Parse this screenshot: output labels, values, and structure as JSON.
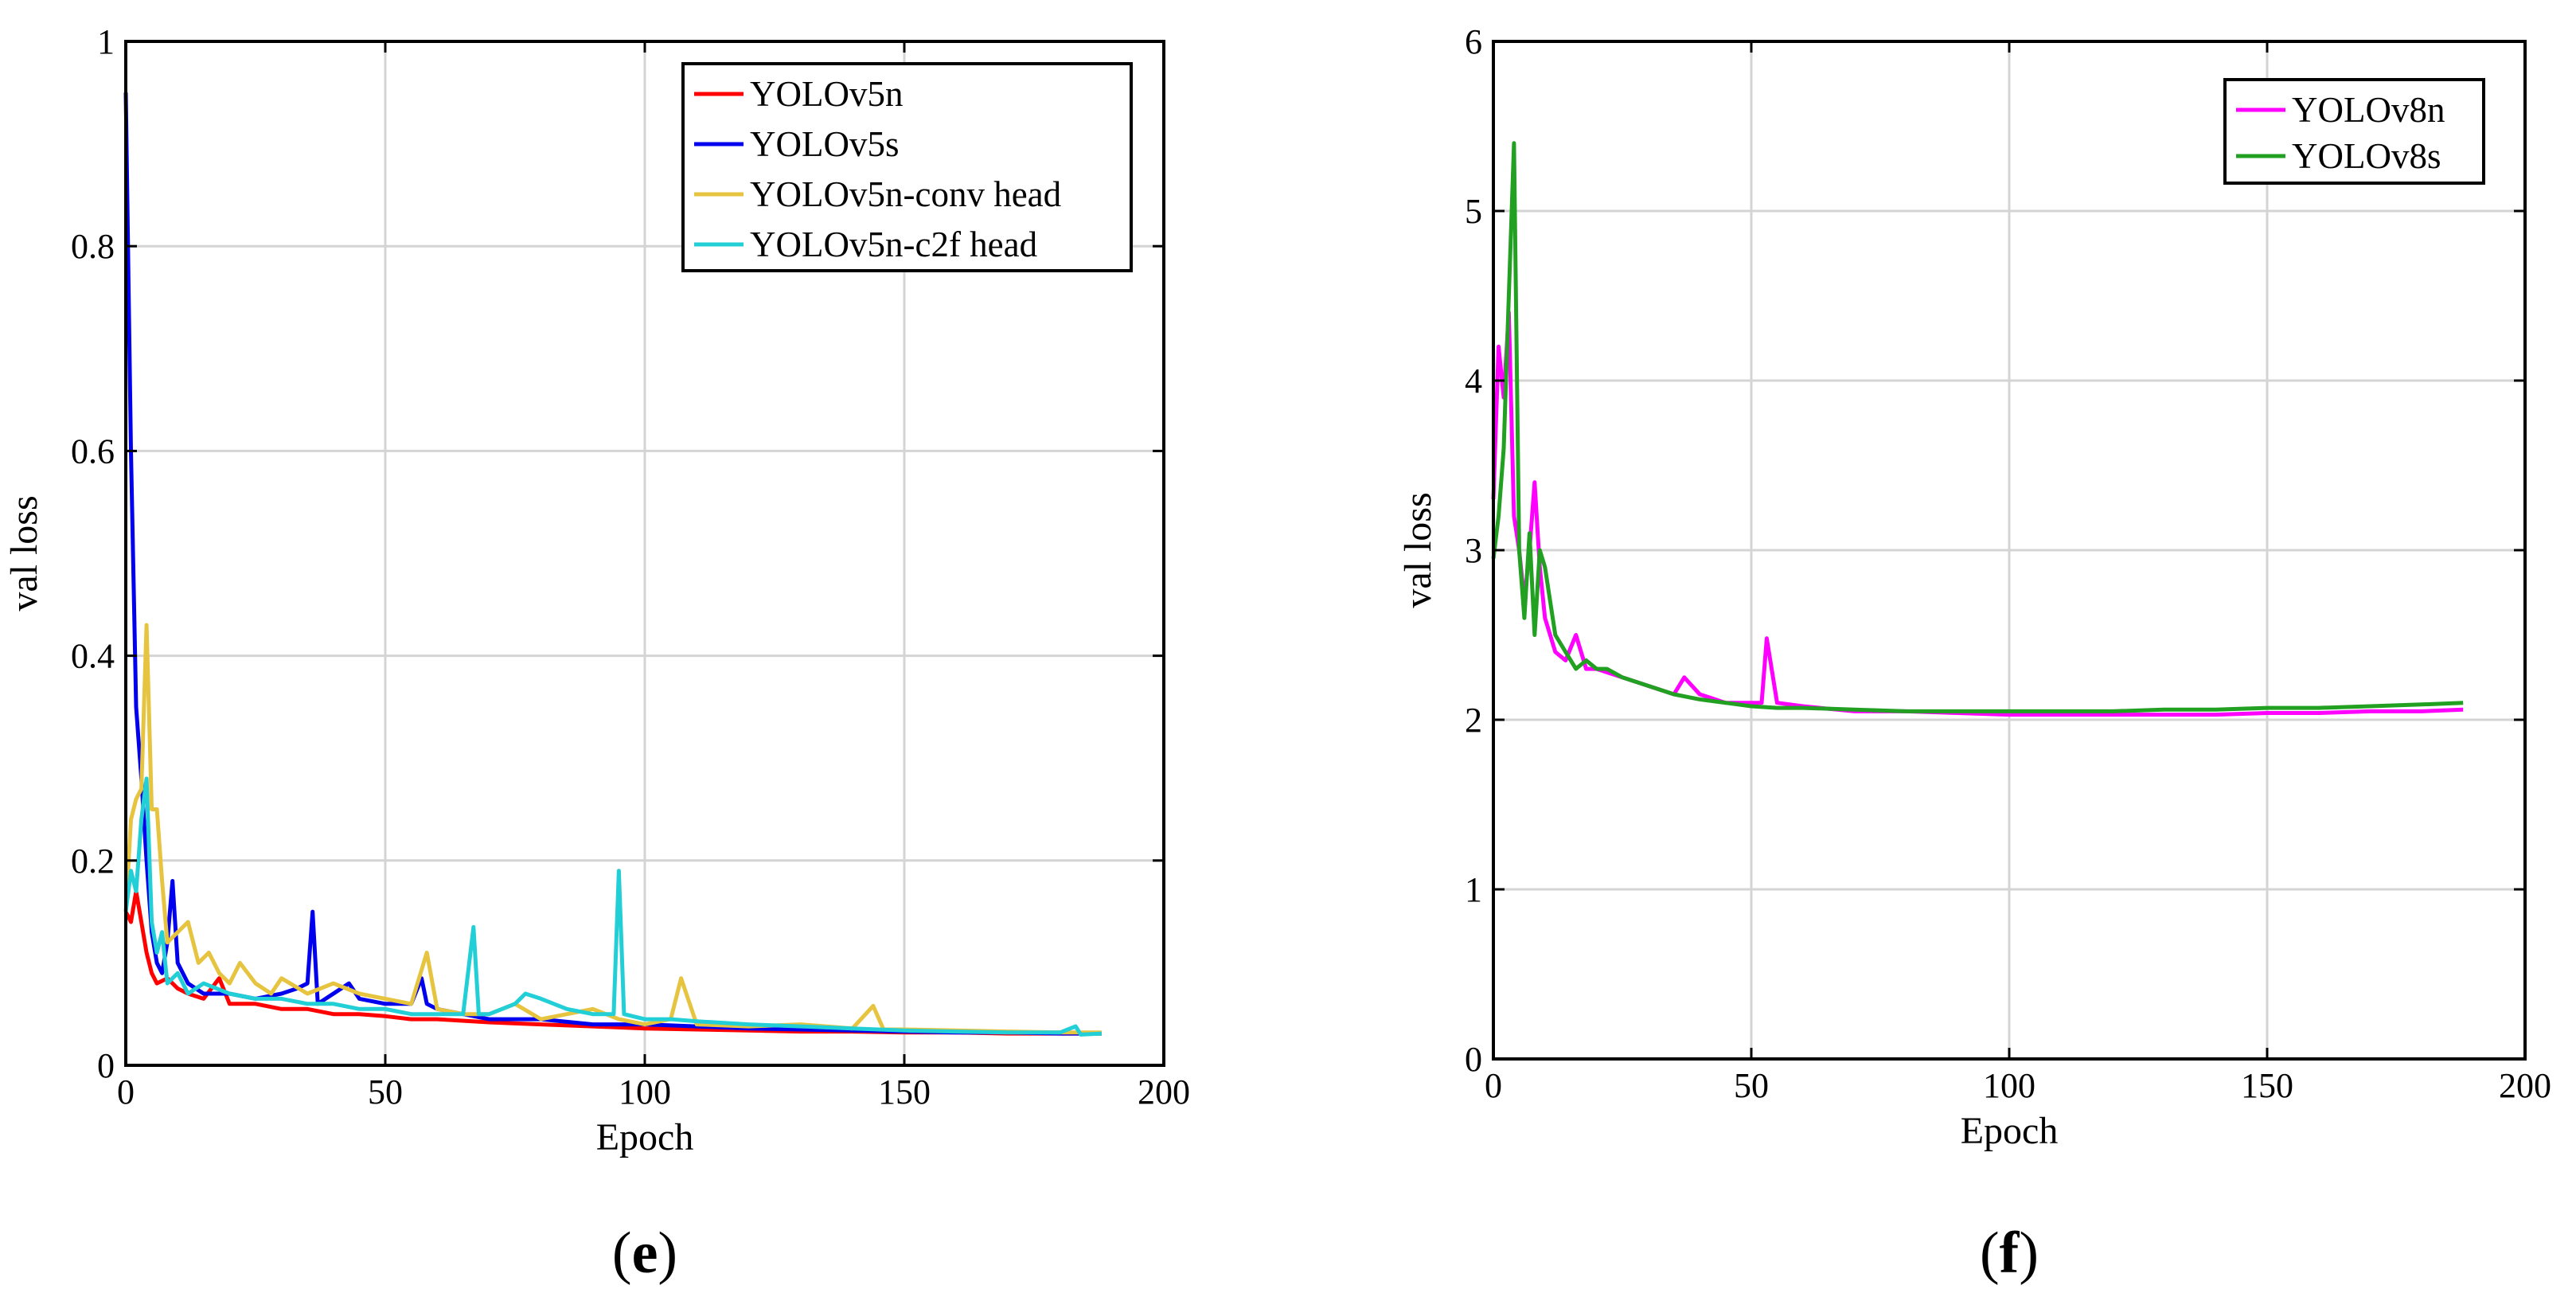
{
  "chart_data": [
    {
      "type": "line",
      "panel_label": "e",
      "xlabel": "Epoch",
      "ylabel": "val loss",
      "xlim": [
        0,
        200
      ],
      "ylim": [
        0,
        1
      ],
      "xticks": [
        0,
        50,
        100,
        150,
        200
      ],
      "yticks": [
        0,
        0.2,
        0.4,
        0.6,
        0.8,
        1
      ],
      "xtick_labels": [
        "0",
        "50",
        "100",
        "150",
        "200"
      ],
      "ytick_labels": [
        "0",
        "0.2",
        "0.4",
        "0.6",
        "0.8",
        "1"
      ],
      "grid": true,
      "legend_position": "top-right",
      "series": [
        {
          "name": "YOLOv5n",
          "color": "#ff0000",
          "x": [
            0,
            1,
            2,
            3,
            4,
            5,
            6,
            8,
            10,
            12,
            15,
            18,
            20,
            25,
            30,
            35,
            40,
            45,
            50,
            55,
            60,
            70,
            80,
            90,
            100,
            110,
            120,
            130,
            140,
            150,
            160,
            170,
            180,
            188
          ],
          "y": [
            0.15,
            0.14,
            0.17,
            0.14,
            0.11,
            0.09,
            0.08,
            0.085,
            0.075,
            0.07,
            0.065,
            0.085,
            0.06,
            0.06,
            0.055,
            0.055,
            0.05,
            0.05,
            0.048,
            0.045,
            0.045,
            0.042,
            0.04,
            0.038,
            0.036,
            0.035,
            0.034,
            0.033,
            0.033,
            0.032,
            0.032,
            0.031,
            0.031,
            0.031
          ]
        },
        {
          "name": "YOLOv5s",
          "color": "#0000ee",
          "x": [
            0,
            1,
            2,
            3,
            4,
            5,
            6,
            7,
            8,
            9,
            10,
            12,
            15,
            20,
            25,
            30,
            33,
            35,
            36,
            37,
            40,
            43,
            45,
            50,
            55,
            57,
            58,
            60,
            65,
            70,
            80,
            90,
            100,
            110,
            120,
            130,
            140,
            150,
            160,
            170,
            180,
            188
          ],
          "y": [
            0.95,
            0.6,
            0.35,
            0.28,
            0.2,
            0.13,
            0.1,
            0.09,
            0.12,
            0.18,
            0.1,
            0.08,
            0.07,
            0.07,
            0.065,
            0.07,
            0.075,
            0.08,
            0.15,
            0.06,
            0.07,
            0.08,
            0.065,
            0.06,
            0.06,
            0.085,
            0.06,
            0.055,
            0.05,
            0.045,
            0.045,
            0.04,
            0.04,
            0.038,
            0.036,
            0.035,
            0.034,
            0.033,
            0.032,
            0.032,
            0.031,
            0.031
          ]
        },
        {
          "name": "YOLOv5n-conv head",
          "color": "#e6c440",
          "x": [
            0,
            1,
            2,
            3,
            4,
            5,
            6,
            7,
            8,
            10,
            12,
            14,
            16,
            18,
            20,
            22,
            25,
            28,
            30,
            35,
            40,
            45,
            50,
            55,
            58,
            60,
            65,
            70,
            75,
            80,
            85,
            90,
            95,
            100,
            105,
            107,
            110,
            120,
            130,
            140,
            144,
            146,
            150,
            160,
            170,
            180,
            188
          ],
          "y": [
            0.15,
            0.24,
            0.26,
            0.27,
            0.43,
            0.25,
            0.25,
            0.18,
            0.12,
            0.13,
            0.14,
            0.1,
            0.11,
            0.09,
            0.08,
            0.1,
            0.08,
            0.07,
            0.085,
            0.07,
            0.08,
            0.07,
            0.065,
            0.06,
            0.11,
            0.055,
            0.05,
            0.05,
            0.06,
            0.045,
            0.05,
            0.055,
            0.045,
            0.04,
            0.045,
            0.085,
            0.04,
            0.038,
            0.04,
            0.036,
            0.058,
            0.035,
            0.035,
            0.034,
            0.033,
            0.032,
            0.032
          ]
        },
        {
          "name": "YOLOv5n-c2f head",
          "color": "#22cfd6",
          "x": [
            0,
            1,
            2,
            3,
            4,
            5,
            6,
            7,
            8,
            10,
            12,
            15,
            20,
            25,
            30,
            35,
            40,
            45,
            50,
            55,
            60,
            65,
            67,
            68,
            70,
            75,
            77,
            80,
            85,
            90,
            94,
            95,
            96,
            100,
            105,
            110,
            120,
            130,
            140,
            150,
            160,
            170,
            180,
            183,
            184,
            188
          ],
          "y": [
            0.15,
            0.19,
            0.17,
            0.24,
            0.28,
            0.14,
            0.11,
            0.13,
            0.08,
            0.09,
            0.07,
            0.08,
            0.07,
            0.065,
            0.065,
            0.06,
            0.06,
            0.055,
            0.055,
            0.05,
            0.05,
            0.05,
            0.135,
            0.05,
            0.05,
            0.06,
            0.07,
            0.065,
            0.055,
            0.05,
            0.05,
            0.19,
            0.05,
            0.045,
            0.045,
            0.043,
            0.04,
            0.038,
            0.036,
            0.034,
            0.033,
            0.032,
            0.032,
            0.038,
            0.03,
            0.031
          ]
        }
      ]
    },
    {
      "type": "line",
      "panel_label": "f",
      "xlabel": "Epoch",
      "ylabel": "val loss",
      "xlim": [
        0,
        200
      ],
      "ylim": [
        0,
        6
      ],
      "xticks": [
        0,
        50,
        100,
        150,
        200
      ],
      "yticks": [
        0,
        1,
        2,
        3,
        4,
        5,
        6
      ],
      "xtick_labels": [
        "0",
        "50",
        "100",
        "150",
        "200"
      ],
      "ytick_labels": [
        "0",
        "1",
        "2",
        "3",
        "4",
        "5",
        "6"
      ],
      "grid": true,
      "legend_position": "top-right",
      "series": [
        {
          "name": "YOLOv8n",
          "color": "#ff00ff",
          "x": [
            0,
            1,
            2,
            3,
            4,
            5,
            6,
            7,
            8,
            9,
            10,
            12,
            14,
            16,
            18,
            20,
            25,
            30,
            35,
            37,
            40,
            45,
            50,
            52,
            53,
            55,
            60,
            70,
            80,
            90,
            100,
            110,
            120,
            130,
            140,
            150,
            160,
            170,
            180,
            188
          ],
          "y": [
            3.3,
            4.2,
            3.9,
            4.4,
            3.2,
            3.0,
            2.7,
            3.0,
            3.4,
            2.9,
            2.6,
            2.4,
            2.35,
            2.5,
            2.3,
            2.3,
            2.25,
            2.2,
            2.15,
            2.25,
            2.15,
            2.1,
            2.1,
            2.1,
            2.48,
            2.1,
            2.08,
            2.05,
            2.05,
            2.04,
            2.03,
            2.03,
            2.03,
            2.03,
            2.03,
            2.04,
            2.04,
            2.05,
            2.05,
            2.06
          ]
        },
        {
          "name": "YOLOv8s",
          "color": "#22a022",
          "x": [
            0,
            1,
            2,
            3,
            4,
            5,
            6,
            7,
            8,
            9,
            10,
            12,
            14,
            16,
            18,
            20,
            22,
            25,
            30,
            35,
            40,
            45,
            50,
            55,
            60,
            70,
            80,
            90,
            100,
            110,
            120,
            130,
            140,
            150,
            160,
            170,
            180,
            188
          ],
          "y": [
            2.95,
            3.2,
            3.6,
            4.5,
            5.4,
            3.0,
            2.6,
            3.1,
            2.5,
            3.0,
            2.9,
            2.5,
            2.4,
            2.3,
            2.35,
            2.3,
            2.3,
            2.25,
            2.2,
            2.15,
            2.12,
            2.1,
            2.08,
            2.07,
            2.07,
            2.06,
            2.05,
            2.05,
            2.05,
            2.05,
            2.05,
            2.06,
            2.06,
            2.07,
            2.07,
            2.08,
            2.09,
            2.1
          ]
        }
      ]
    }
  ]
}
